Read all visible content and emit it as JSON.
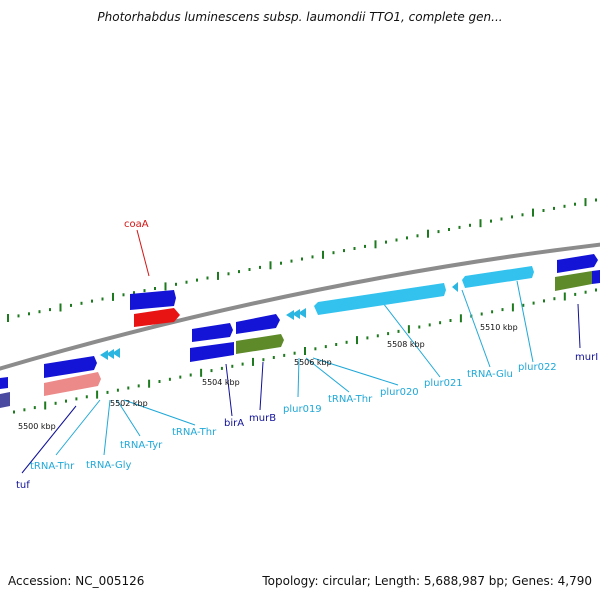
{
  "title": "Photorhabdus luminescens subsp. laumondii TTO1, complete gen...",
  "footer": {
    "accession": "Accession: NC_005126",
    "summary": "Topology: circular; Length: 5,688,987 bp; Genes: 4,790"
  },
  "colors": {
    "backbone": "#8c8c8c",
    "tick": "#1e7a1e",
    "gene_blue": "#1414d6",
    "gene_light_blue": "#33c2ee",
    "trna": "#2ab6e0",
    "gene_red": "#e81414",
    "gene_pink": "#ec8a8a",
    "gene_olive": "#5e8a2a",
    "label_dark": "#111199",
    "label_light": "#1fa8d8",
    "label_red": "#d61414"
  },
  "ruler_labels": [
    "5500 kbp",
    "5502 kbp",
    "5504 kbp",
    "5506 kbp",
    "5508 kbp",
    "5510 kbp"
  ],
  "gene_labels": [
    {
      "text": "coaA",
      "color": "label_red"
    },
    {
      "text": "tuf",
      "color": "label_dark"
    },
    {
      "text": "tRNA-Thr",
      "color": "label_light"
    },
    {
      "text": "tRNA-Gly",
      "color": "label_light"
    },
    {
      "text": "tRNA-Tyr",
      "color": "label_light"
    },
    {
      "text": "tRNA-Thr",
      "color": "label_light"
    },
    {
      "text": "birA",
      "color": "label_dark"
    },
    {
      "text": "murB",
      "color": "label_dark"
    },
    {
      "text": "plur019",
      "color": "label_light"
    },
    {
      "text": "tRNA-Thr",
      "color": "label_light"
    },
    {
      "text": "plur020",
      "color": "label_light"
    },
    {
      "text": "plur021",
      "color": "label_light"
    },
    {
      "text": "tRNA-Glu",
      "color": "label_light"
    },
    {
      "text": "plur022",
      "color": "label_light"
    },
    {
      "text": "murI",
      "color": "label_dark"
    }
  ]
}
